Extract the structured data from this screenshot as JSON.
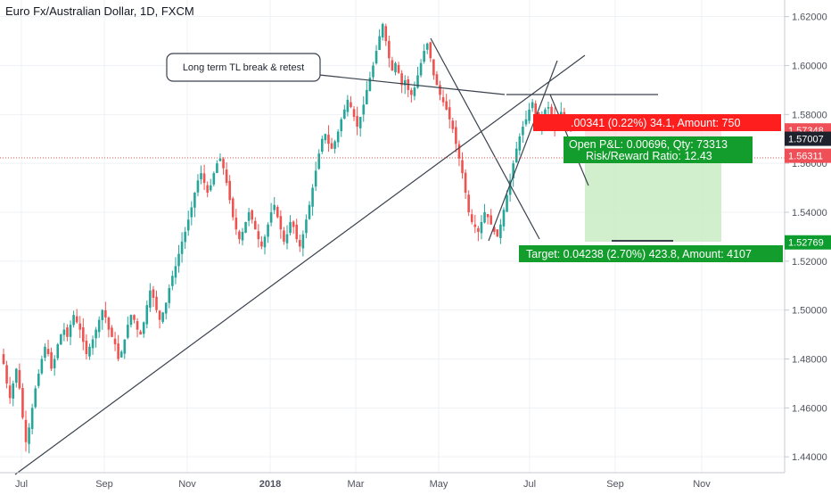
{
  "chart_data": {
    "type": "candlestick",
    "title": "Euro Fx/Australian Dollar, 1D, FXCM",
    "colors": {
      "up": "#26a69a",
      "down": "#ef5350",
      "axis_text": "#50535e",
      "grid": "#eef1f5"
    },
    "y_ticks": [
      "1.62000",
      "1.60000",
      "1.58000",
      "1.56000",
      "1.54000",
      "1.52000",
      "1.50000",
      "1.48000",
      "1.46000",
      "1.44000"
    ],
    "ylim": [
      1.4335,
      1.6268
    ],
    "x_ticks": [
      "Jul",
      "Sep",
      "Nov",
      "2018",
      "Mar",
      "May",
      "Jul",
      "Sep",
      "Nov"
    ],
    "closes": [
      1.478,
      1.47,
      1.464,
      1.47,
      1.476,
      1.468,
      1.456,
      1.446,
      1.452,
      1.46,
      1.468,
      1.474,
      1.48,
      1.485,
      1.482,
      1.476,
      1.48,
      1.486,
      1.49,
      1.492,
      1.489,
      1.494,
      1.498,
      1.495,
      1.492,
      1.487,
      1.482,
      1.485,
      1.488,
      1.492,
      1.496,
      1.5,
      1.497,
      1.492,
      1.489,
      1.486,
      1.48,
      1.483,
      1.488,
      1.494,
      1.498,
      1.496,
      1.492,
      1.49,
      1.495,
      1.502,
      1.508,
      1.505,
      1.5,
      1.496,
      1.499,
      1.503,
      1.509,
      1.514,
      1.518,
      1.523,
      1.528,
      1.532,
      1.537,
      1.542,
      1.548,
      1.553,
      1.556,
      1.552,
      1.548,
      1.551,
      1.556,
      1.56,
      1.562,
      1.558,
      1.552,
      1.545,
      1.538,
      1.533,
      1.529,
      1.532,
      1.536,
      1.54,
      1.537,
      1.533,
      1.529,
      1.526,
      1.53,
      1.535,
      1.54,
      1.543,
      1.538,
      1.533,
      1.528,
      1.531,
      1.536,
      1.534,
      1.529,
      1.526,
      1.531,
      1.537,
      1.543,
      1.55,
      1.557,
      1.564,
      1.57,
      1.572,
      1.568,
      1.566,
      1.569,
      1.573,
      1.578,
      1.582,
      1.586,
      1.583,
      1.579,
      1.575,
      1.579,
      1.584,
      1.59,
      1.595,
      1.6,
      1.606,
      1.612,
      1.617,
      1.61,
      1.603,
      1.598,
      1.601,
      1.597,
      1.592,
      1.594,
      1.59,
      1.588,
      1.591,
      1.596,
      1.601,
      1.606,
      1.609,
      1.603,
      1.596,
      1.592,
      1.588,
      1.585,
      1.582,
      1.578,
      1.574,
      1.568,
      1.562,
      1.556,
      1.548,
      1.54,
      1.536,
      1.534,
      1.532,
      1.536,
      1.54,
      1.538,
      1.535,
      1.532,
      1.53,
      1.535,
      1.541,
      1.547,
      1.553,
      1.56,
      1.566,
      1.571,
      1.575,
      1.578,
      1.582,
      1.585,
      1.58,
      1.576,
      1.578,
      1.582,
      1.583,
      1.579,
      1.574,
      1.577,
      1.581,
      1.578,
      1.574,
      1.57348
    ],
    "annotations": {
      "callout": "Long term TL break & retest",
      "stop_label": ".00341 (0.22%) 34.1, Amount: 750",
      "open_pnl": "Open P&L: 0.00696, Qty: 73313",
      "risk_reward": "Risk/Reward Ratio: 12.43",
      "target_label": "Target: 0.04238 (2.70%) 423.8, Amount: 4107"
    },
    "price_tags": [
      {
        "label": "1.57348",
        "value": 1.57348,
        "color": "#ef4f56"
      },
      {
        "label": "1.57007",
        "value": 1.57007,
        "color": "#1e222d"
      },
      {
        "label": "1.56311",
        "value": 1.56311,
        "color": "#ef4f56"
      },
      {
        "label": "1.52769",
        "value": 1.52769,
        "color": "#0d9d2f"
      }
    ]
  }
}
